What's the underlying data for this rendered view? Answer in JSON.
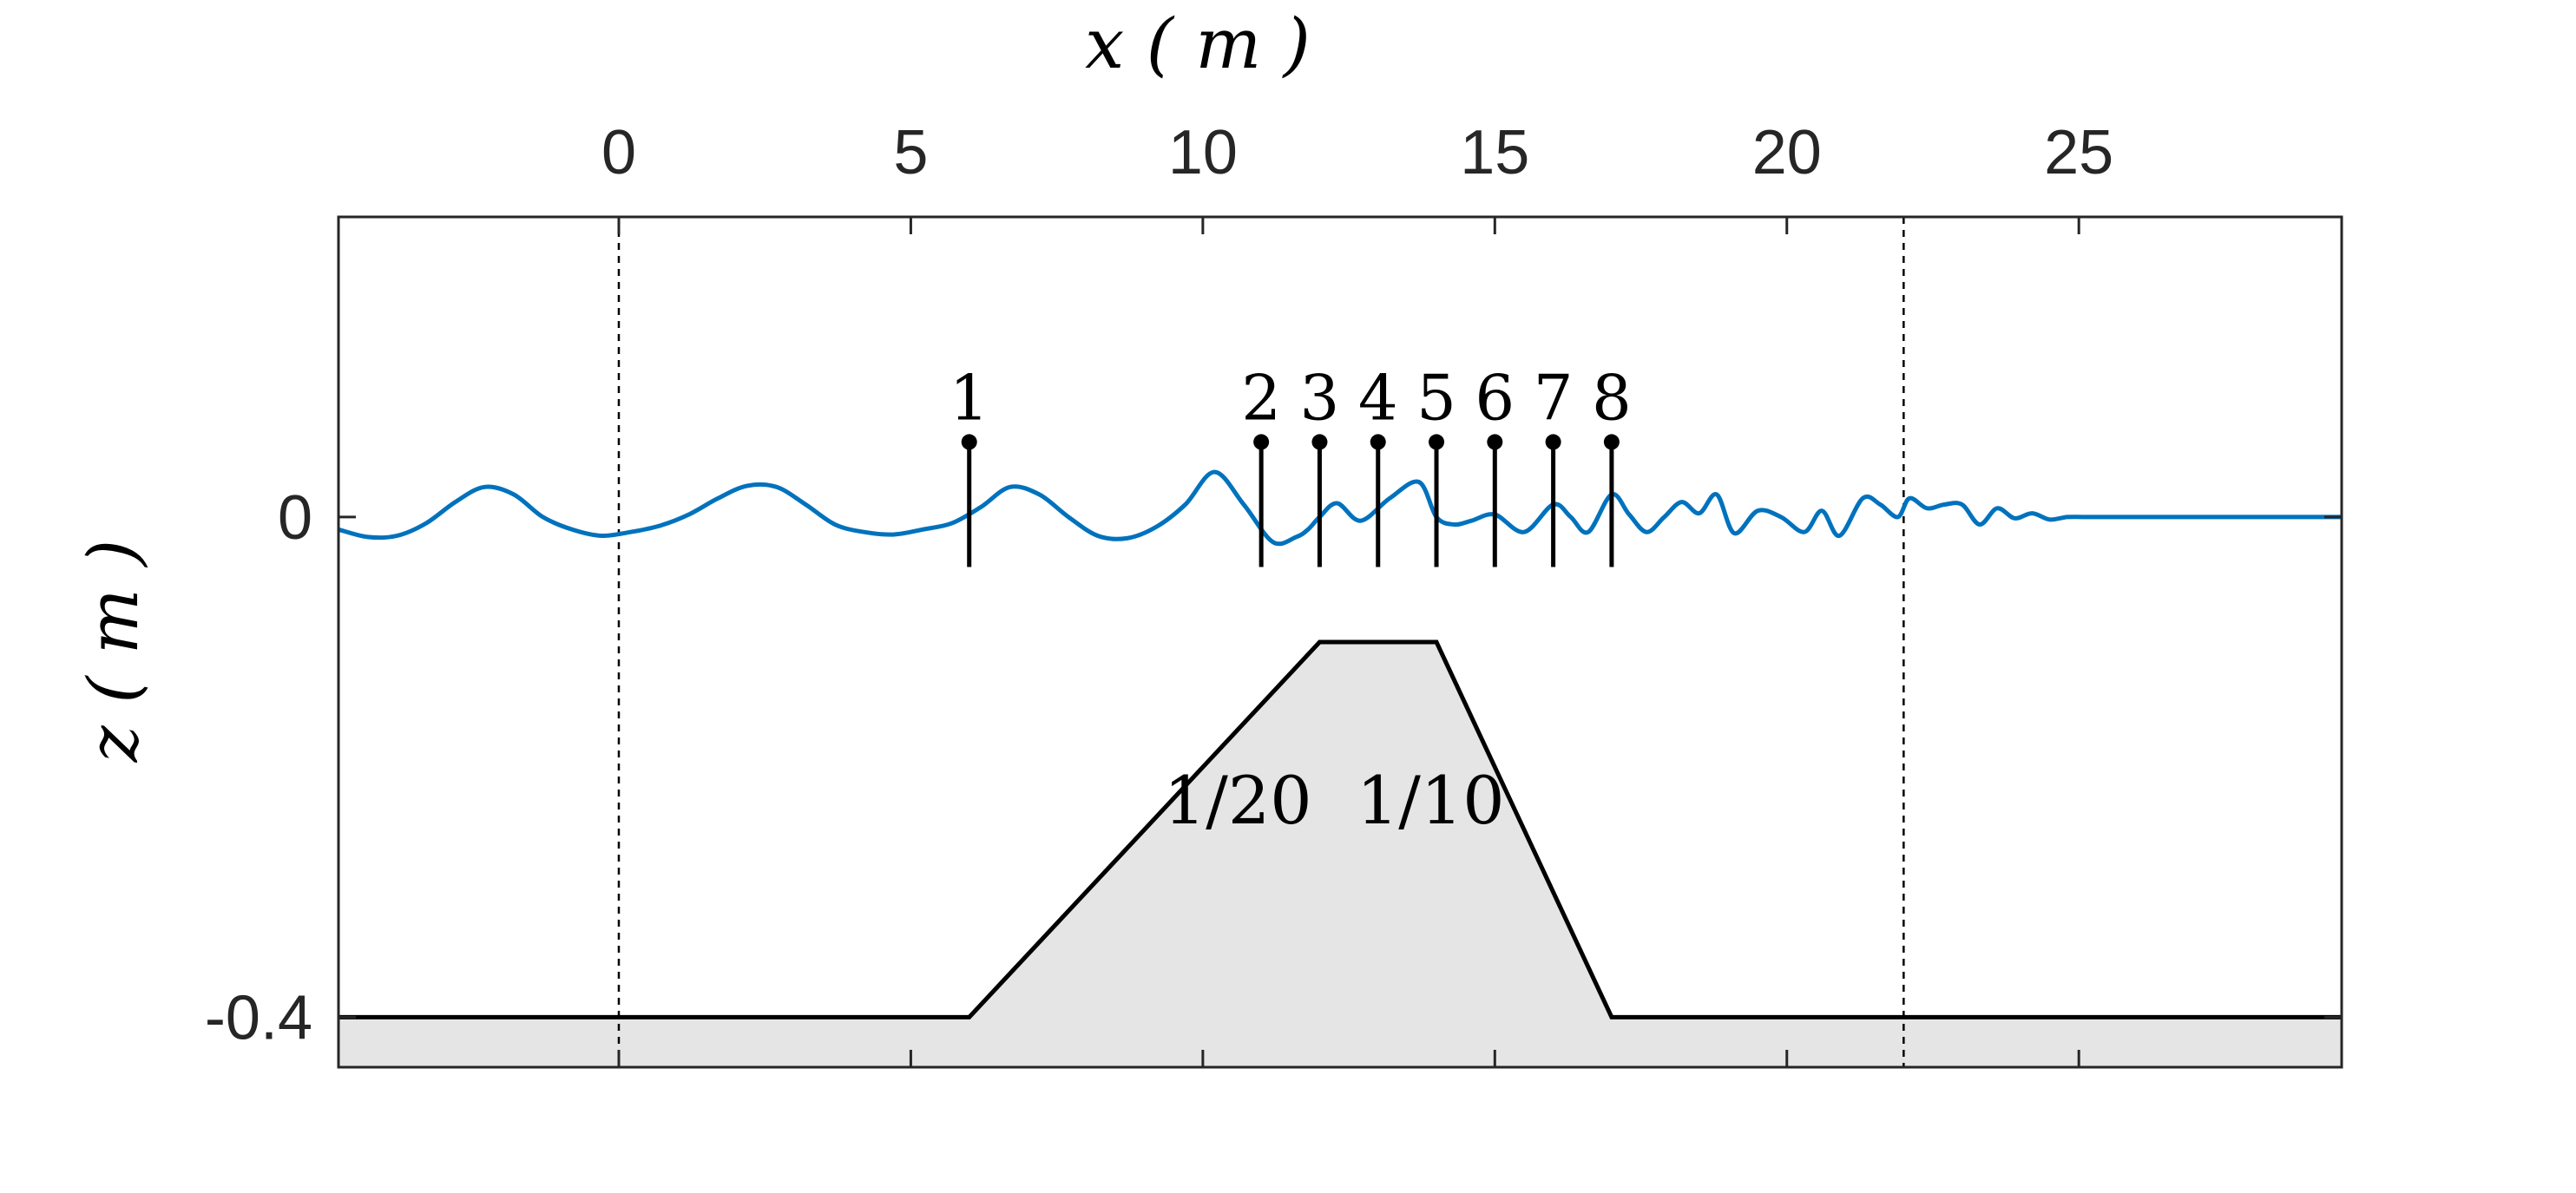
{
  "chart_data": {
    "type": "line",
    "title": "",
    "xlabel": "x ( m )",
    "ylabel": "z ( m )",
    "x_axis_position": "top",
    "xlim": [
      -4.8,
      29.5
    ],
    "ylim": [
      -0.44,
      0.24
    ],
    "xticks": [
      0,
      5,
      10,
      15,
      20,
      25
    ],
    "xtick_labels": [
      "0",
      "5",
      "10",
      "15",
      "20",
      "25"
    ],
    "yticks": [
      0,
      -0.4
    ],
    "ytick_labels": [
      "0",
      "-0.4"
    ],
    "grid": false,
    "dashed_lines_x": [
      0,
      22
    ],
    "colors": {
      "surface": "#0072BD",
      "bar": "#000000",
      "bar_fill": "#E5E5E5",
      "axes": "#262626"
    },
    "series": [
      {
        "name": "",
        "kind": "free-surface",
        "x": [
          -4.8,
          -4.3,
          -3.8,
          -3.3,
          -2.8,
          -2.3,
          -1.8,
          -1.3,
          -0.8,
          -0.3,
          0.2,
          0.7,
          1.2,
          1.7,
          2.2,
          2.7,
          3.2,
          3.7,
          4.2,
          4.7,
          5.2,
          5.7,
          6.2,
          6.7,
          7.2,
          7.7,
          8.2,
          8.7,
          9.2,
          9.7,
          10.2,
          10.7,
          11.2,
          11.6,
          11.8,
          12.0,
          12.3,
          12.7,
          13.2,
          13.7,
          14.0,
          14.3,
          14.6,
          15.0,
          15.5,
          16.0,
          16.3,
          16.6,
          17.0,
          17.3,
          17.6,
          17.9,
          18.2,
          18.5,
          18.8,
          19.1,
          19.5,
          19.9,
          20.3,
          20.6,
          20.9,
          21.3,
          21.6,
          21.9,
          22.1,
          22.4,
          22.7,
          23.0,
          23.3,
          23.6,
          23.9,
          24.2,
          24.5,
          24.8,
          25.1,
          25.5,
          26.0,
          26.5,
          27.5,
          28.5,
          29.5
        ],
        "y": [
          -0.01,
          -0.016,
          -0.015,
          -0.005,
          0.012,
          0.024,
          0.018,
          0.0,
          -0.01,
          -0.015,
          -0.012,
          -0.007,
          0.002,
          0.015,
          0.025,
          0.024,
          0.01,
          -0.006,
          -0.012,
          -0.014,
          -0.01,
          -0.005,
          0.008,
          0.024,
          0.018,
          0.0,
          -0.015,
          -0.017,
          -0.008,
          0.01,
          0.036,
          0.01,
          -0.02,
          -0.016,
          -0.01,
          0.0,
          0.011,
          -0.003,
          0.015,
          0.028,
          0.0,
          -0.006,
          -0.003,
          0.002,
          -0.012,
          0.01,
          0.0,
          -0.012,
          0.018,
          0.002,
          -0.012,
          0.0,
          0.012,
          0.003,
          0.018,
          -0.013,
          0.005,
          0.0,
          -0.012,
          0.005,
          -0.015,
          0.015,
          0.01,
          0.0,
          0.015,
          0.007,
          0.01,
          0.01,
          -0.006,
          0.007,
          -0.001,
          0.003,
          -0.002,
          0.0,
          0.0,
          0.0,
          0.0,
          0.0,
          0.0,
          0.0,
          0.0
        ]
      },
      {
        "name": "",
        "kind": "bathymetry",
        "x": [
          -4.8,
          6.0,
          12.0,
          14.0,
          17.0,
          29.5
        ],
        "y": [
          -0.4,
          -0.4,
          -0.1,
          -0.1,
          -0.4,
          -0.4
        ]
      }
    ],
    "gauges": {
      "labels": [
        "1",
        "2",
        "3",
        "4",
        "5",
        "6",
        "7",
        "8"
      ],
      "x": [
        6.0,
        11.0,
        12.0,
        13.0,
        14.0,
        15.0,
        16.0,
        17.0
      ],
      "top_z": 0.06,
      "bottom_z": -0.04
    },
    "annotations": [
      {
        "text": "1/20",
        "x": 10.6,
        "z": -0.245
      },
      {
        "text": "1/10",
        "x": 13.9,
        "z": -0.245
      }
    ]
  }
}
